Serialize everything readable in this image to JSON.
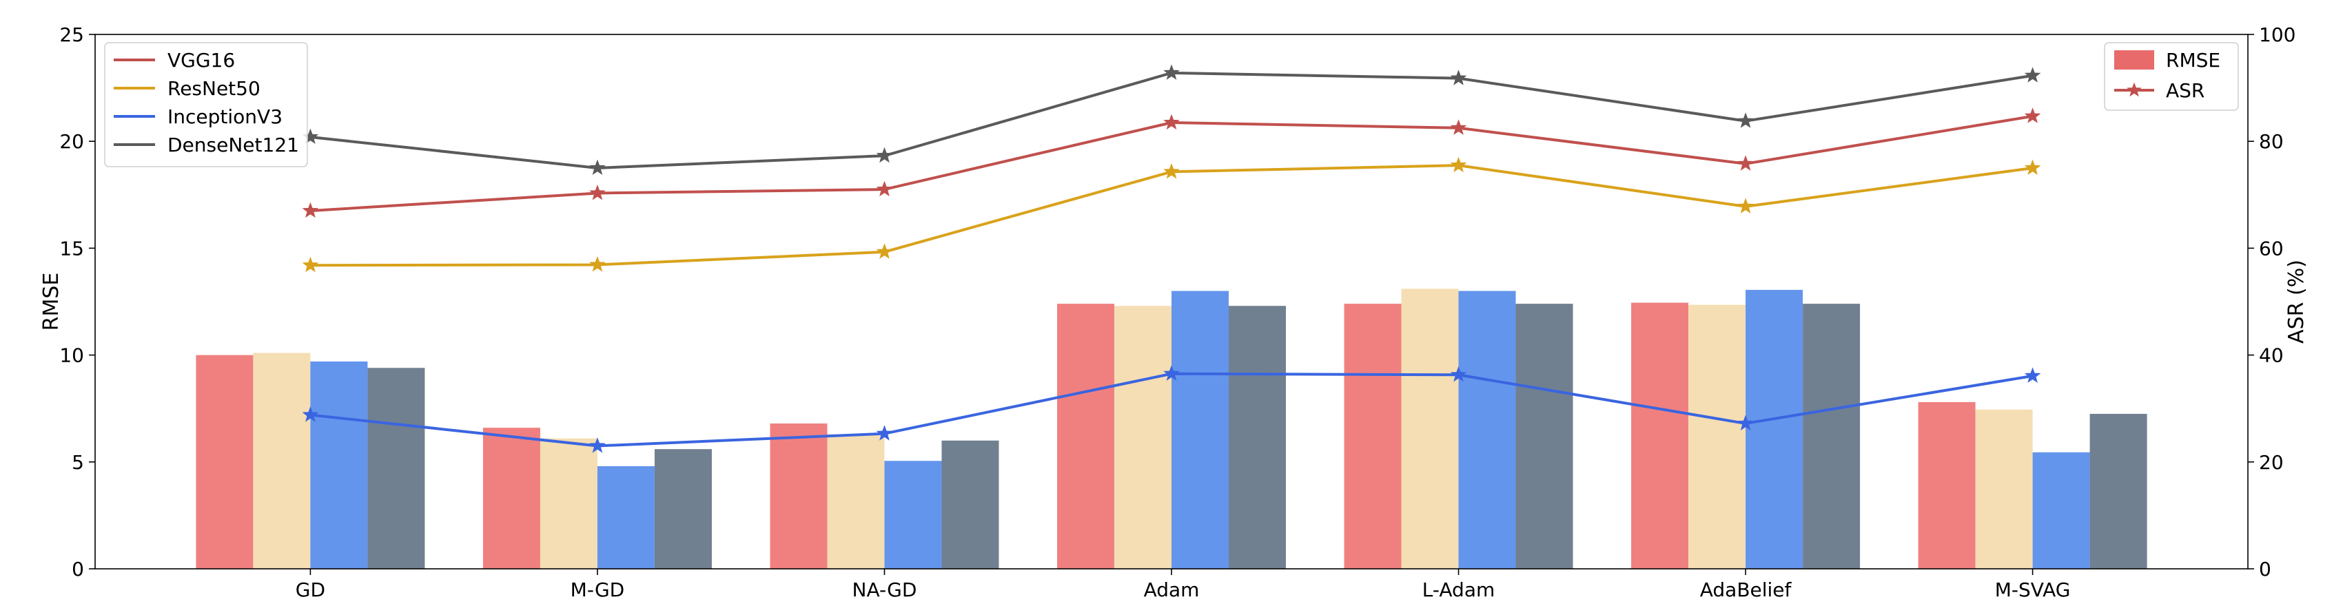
{
  "chart_data": {
    "type": "bar+line",
    "categories": [
      "GD",
      "M-GD",
      "NA-GD",
      "Adam",
      "L-Adam",
      "AdaBelief",
      "M-SVAG"
    ],
    "left_axis": {
      "label": "RMSE",
      "ylim": [
        0,
        25
      ],
      "ticks": [
        0,
        5,
        10,
        15,
        20,
        25
      ]
    },
    "right_axis": {
      "label": "ASR (%)",
      "ylim": [
        0,
        100
      ],
      "ticks": [
        0,
        20,
        40,
        60,
        80,
        100
      ]
    },
    "bar_series": [
      {
        "key": "VGG16",
        "color": "#f08080",
        "values": [
          10.0,
          6.6,
          6.8,
          12.4,
          12.4,
          12.45,
          7.8
        ]
      },
      {
        "key": "ResNet50",
        "color": "#f5deb3",
        "values": [
          10.1,
          6.1,
          6.3,
          12.3,
          13.1,
          12.35,
          7.45
        ]
      },
      {
        "key": "InceptionV3",
        "color": "#6495ed",
        "values": [
          9.7,
          4.8,
          5.05,
          13.0,
          13.0,
          13.05,
          5.45
        ]
      },
      {
        "key": "DenseNet121",
        "color": "#708090",
        "values": [
          9.4,
          5.6,
          6.0,
          12.3,
          12.4,
          12.4,
          7.25
        ]
      }
    ],
    "line_series": [
      {
        "name": "VGG16",
        "color": "#c0504d",
        "values": [
          67.0,
          70.3,
          71.0,
          83.5,
          82.5,
          75.8,
          84.7
        ]
      },
      {
        "name": "ResNet50",
        "color": "#d9a21b",
        "values": [
          56.8,
          56.9,
          59.3,
          74.3,
          75.5,
          67.8,
          75.0
        ]
      },
      {
        "name": "InceptionV3",
        "color": "#3a65e0",
        "values": [
          28.8,
          23.0,
          25.3,
          36.5,
          36.3,
          27.2,
          36.1
        ]
      },
      {
        "name": "DenseNet121",
        "color": "#5a5a5a",
        "values": [
          80.8,
          75.0,
          77.3,
          92.8,
          91.8,
          83.8,
          92.3
        ]
      }
    ],
    "legend_left": {
      "position": "top-left",
      "entries": [
        "VGG16",
        "ResNet50",
        "InceptionV3",
        "DenseNet121"
      ]
    },
    "legend_right": {
      "position": "top-right",
      "entries": [
        {
          "label": "RMSE",
          "kind": "bar",
          "color": "#e86a6a"
        },
        {
          "label": "ASR",
          "kind": "line-star",
          "color": "#c0504d"
        }
      ]
    },
    "grid": false
  }
}
